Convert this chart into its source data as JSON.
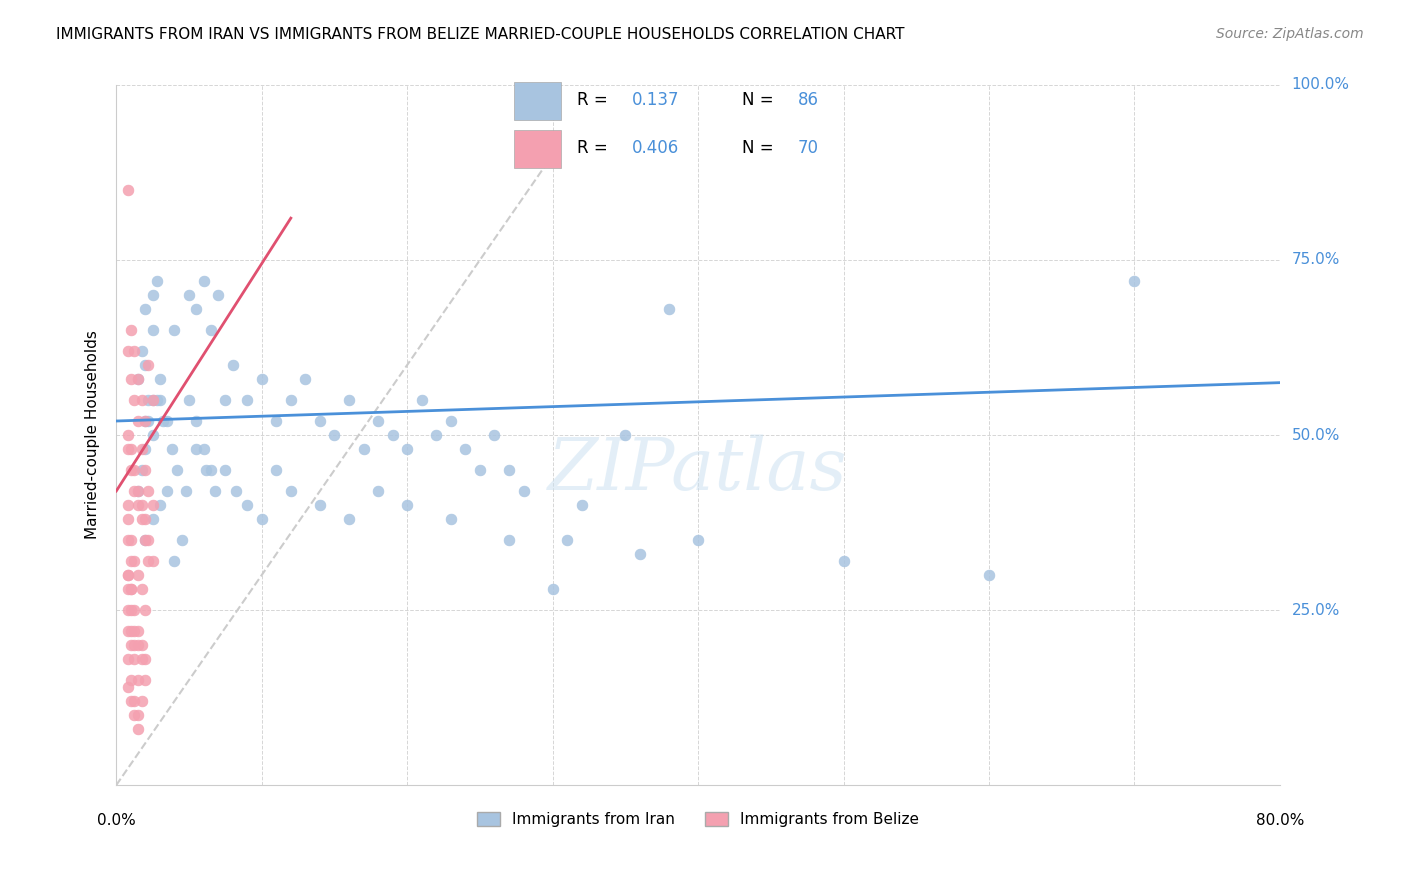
{
  "title": "IMMIGRANTS FROM IRAN VS IMMIGRANTS FROM BELIZE MARRIED-COUPLE HOUSEHOLDS CORRELATION CHART",
  "source": "Source: ZipAtlas.com",
  "ylabel": "Married-couple Households",
  "xlabel": "",
  "xlim": [
    0.0,
    0.8
  ],
  "ylim": [
    0.0,
    1.0
  ],
  "xticks": [
    0.0,
    0.1,
    0.2,
    0.3,
    0.4,
    0.5,
    0.6,
    0.7,
    0.8
  ],
  "xticklabels": [
    "0.0%",
    "",
    "",
    "",
    "",
    "",
    "",
    "",
    "80.0%"
  ],
  "yticks": [
    0.0,
    0.25,
    0.5,
    0.75,
    1.0
  ],
  "yticklabels": [
    "",
    "25.0%",
    "50.0%",
    "75.0%",
    "100.0%"
  ],
  "iran_R": 0.137,
  "iran_N": 86,
  "belize_R": 0.406,
  "belize_N": 70,
  "iran_color": "#a8c4e0",
  "belize_color": "#f4a0b0",
  "iran_line_color": "#4a90d9",
  "belize_line_color": "#e05070",
  "diagonal_color": "#cccccc",
  "watermark": "ZIPatlas",
  "legend_iran_label": "Immigrants from Iran",
  "legend_belize_label": "Immigrants from Belize",
  "iran_x": [
    0.02,
    0.025,
    0.02,
    0.018,
    0.015,
    0.022,
    0.028,
    0.025,
    0.03,
    0.035,
    0.04,
    0.05,
    0.055,
    0.06,
    0.065,
    0.07,
    0.075,
    0.08,
    0.09,
    0.1,
    0.11,
    0.12,
    0.13,
    0.14,
    0.15,
    0.16,
    0.17,
    0.18,
    0.19,
    0.2,
    0.21,
    0.22,
    0.23,
    0.24,
    0.25,
    0.26,
    0.27,
    0.28,
    0.3,
    0.32,
    0.35,
    0.38,
    0.02,
    0.025,
    0.03,
    0.025,
    0.02,
    0.022,
    0.018,
    0.015,
    0.028,
    0.032,
    0.038,
    0.042,
    0.048,
    0.055,
    0.062,
    0.068,
    0.075,
    0.082,
    0.09,
    0.1,
    0.11,
    0.12,
    0.14,
    0.16,
    0.18,
    0.2,
    0.23,
    0.27,
    0.31,
    0.36,
    0.4,
    0.5,
    0.6,
    0.7,
    0.02,
    0.025,
    0.03,
    0.035,
    0.04,
    0.045,
    0.05,
    0.055,
    0.06,
    0.065
  ],
  "iran_y": [
    0.68,
    0.65,
    0.6,
    0.62,
    0.58,
    0.55,
    0.72,
    0.7,
    0.55,
    0.52,
    0.65,
    0.7,
    0.68,
    0.72,
    0.65,
    0.7,
    0.55,
    0.6,
    0.55,
    0.58,
    0.52,
    0.55,
    0.58,
    0.52,
    0.5,
    0.55,
    0.48,
    0.52,
    0.5,
    0.48,
    0.55,
    0.5,
    0.52,
    0.48,
    0.45,
    0.5,
    0.45,
    0.42,
    0.28,
    0.4,
    0.5,
    0.68,
    0.52,
    0.55,
    0.58,
    0.5,
    0.48,
    0.52,
    0.45,
    0.42,
    0.55,
    0.52,
    0.48,
    0.45,
    0.42,
    0.48,
    0.45,
    0.42,
    0.45,
    0.42,
    0.4,
    0.38,
    0.45,
    0.42,
    0.4,
    0.38,
    0.42,
    0.4,
    0.38,
    0.35,
    0.35,
    0.33,
    0.35,
    0.32,
    0.3,
    0.72,
    0.35,
    0.38,
    0.4,
    0.42,
    0.32,
    0.35,
    0.55,
    0.52,
    0.48,
    0.45
  ],
  "belize_x": [
    0.008,
    0.01,
    0.012,
    0.015,
    0.018,
    0.02,
    0.022,
    0.025,
    0.008,
    0.01,
    0.012,
    0.015,
    0.018,
    0.02,
    0.022,
    0.025,
    0.008,
    0.01,
    0.012,
    0.015,
    0.018,
    0.02,
    0.022,
    0.025,
    0.008,
    0.01,
    0.012,
    0.015,
    0.018,
    0.02,
    0.008,
    0.01,
    0.012,
    0.015,
    0.018,
    0.02,
    0.022,
    0.008,
    0.01,
    0.012,
    0.015,
    0.018,
    0.02,
    0.008,
    0.01,
    0.012,
    0.015,
    0.018,
    0.02,
    0.008,
    0.01,
    0.012,
    0.015,
    0.018,
    0.008,
    0.01,
    0.012,
    0.015,
    0.008,
    0.01,
    0.012,
    0.015,
    0.008,
    0.01,
    0.012,
    0.008,
    0.01,
    0.008,
    0.01,
    0.008
  ],
  "belize_y": [
    0.85,
    0.65,
    0.62,
    0.58,
    0.55,
    0.52,
    0.6,
    0.55,
    0.5,
    0.48,
    0.45,
    0.42,
    0.4,
    0.38,
    0.35,
    0.32,
    0.62,
    0.58,
    0.55,
    0.52,
    0.48,
    0.45,
    0.42,
    0.4,
    0.38,
    0.35,
    0.32,
    0.3,
    0.28,
    0.25,
    0.48,
    0.45,
    0.42,
    0.4,
    0.38,
    0.35,
    0.32,
    0.3,
    0.28,
    0.25,
    0.22,
    0.2,
    0.18,
    0.28,
    0.25,
    0.22,
    0.2,
    0.18,
    0.15,
    0.22,
    0.2,
    0.18,
    0.15,
    0.12,
    0.18,
    0.15,
    0.12,
    0.1,
    0.14,
    0.12,
    0.1,
    0.08,
    0.25,
    0.22,
    0.2,
    0.3,
    0.28,
    0.35,
    0.32,
    0.4
  ]
}
